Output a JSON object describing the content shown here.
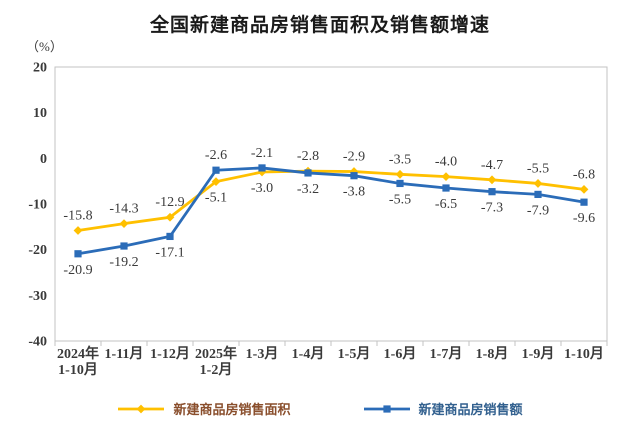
{
  "title": "全国新建商品房销售面积及销售额增速",
  "unit_label": "（%）",
  "chart_data": {
    "type": "line",
    "categories": [
      [
        "2024年",
        "1-10月"
      ],
      [
        "1-11月"
      ],
      [
        "1-12月"
      ],
      [
        "2025年",
        "1-2月"
      ],
      [
        "1-3月"
      ],
      [
        "1-4月"
      ],
      [
        "1-5月"
      ],
      [
        "1-6月"
      ],
      [
        "1-7月"
      ],
      [
        "1-8月"
      ],
      [
        "1-9月"
      ],
      [
        "1-10月"
      ]
    ],
    "series": [
      {
        "id": "sales-area",
        "name": "新建商品房销售面积",
        "marker": "diamond",
        "color": "#FFC000",
        "legend_text_color": "#8a4f2d",
        "values": [
          -15.8,
          -14.3,
          -12.9,
          -5.1,
          -3.0,
          -2.8,
          -2.9,
          -3.5,
          -4.0,
          -4.7,
          -5.5,
          -6.8
        ]
      },
      {
        "id": "sales-amount",
        "name": "新建商品房销售额",
        "marker": "square",
        "color": "#2B6CB8",
        "legend_text_color": "#33618f",
        "values": [
          -20.9,
          -19.2,
          -17.1,
          -2.6,
          -2.1,
          -3.2,
          -3.8,
          -5.5,
          -6.5,
          -7.3,
          -7.9,
          -9.6
        ]
      }
    ],
    "ylim": [
      -40,
      20
    ],
    "yticks": [
      20,
      10,
      0,
      -10,
      -20,
      -30,
      -40
    ],
    "grid": false,
    "data_labels": true,
    "legend_position": "bottom",
    "axis_text_color": "#3a3a3a",
    "frame_color": "#c3c3c3"
  }
}
